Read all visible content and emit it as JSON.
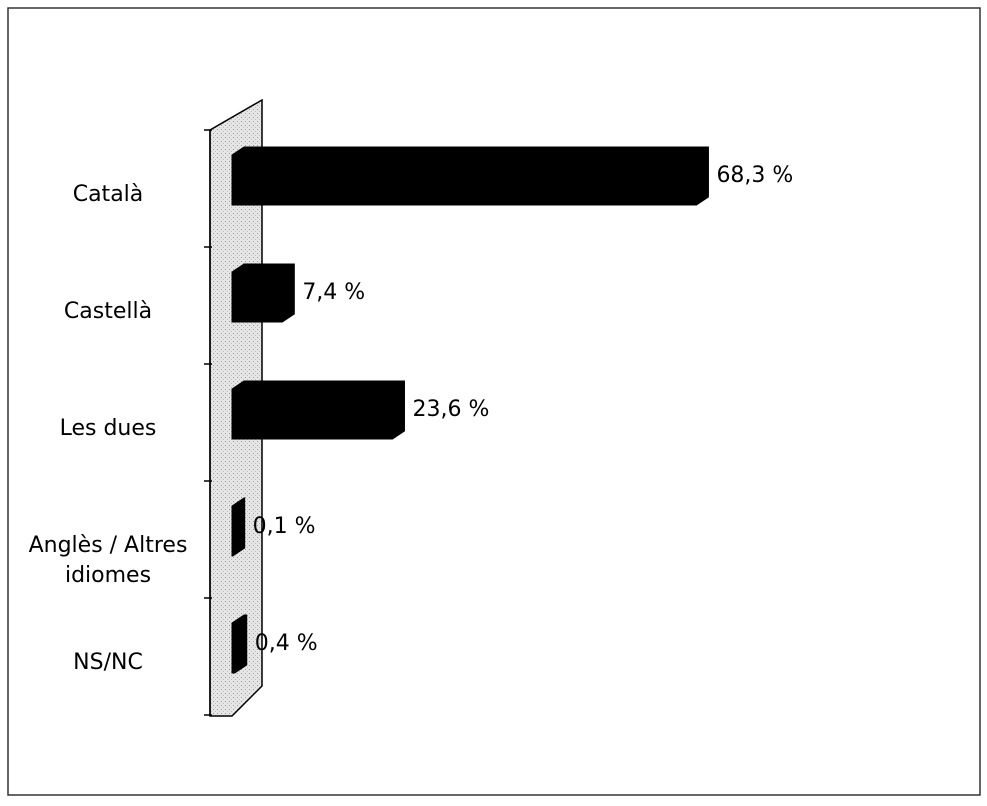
{
  "chart_data": {
    "type": "bar",
    "orientation": "horizontal",
    "categories": [
      "Català",
      "Castellà",
      "Les dues",
      "Anglès / Altres idiomes",
      "NS/NC"
    ],
    "values": [
      68.3,
      7.4,
      23.6,
      0.1,
      0.4
    ],
    "value_labels": [
      "68,3 %",
      "7,4 %",
      "23,6 %",
      "0,1 %",
      "0,4 %"
    ],
    "color": "#000000"
  }
}
